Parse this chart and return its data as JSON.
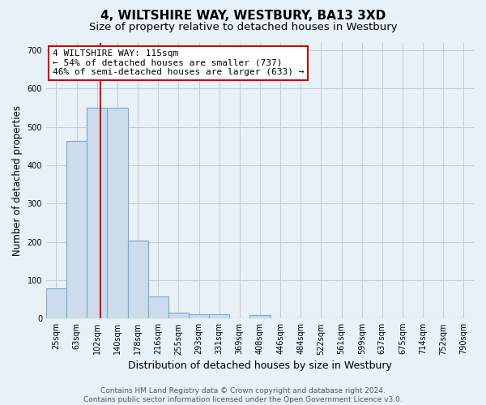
{
  "title": "4, WILTSHIRE WAY, WESTBURY, BA13 3XD",
  "subtitle": "Size of property relative to detached houses in Westbury",
  "xlabel": "Distribution of detached houses by size in Westbury",
  "ylabel": "Number of detached properties",
  "footer_line1": "Contains HM Land Registry data © Crown copyright and database right 2024.",
  "footer_line2": "Contains public sector information licensed under the Open Government Licence v3.0.",
  "bin_labels": [
    "25sqm",
    "63sqm",
    "102sqm",
    "140sqm",
    "178sqm",
    "216sqm",
    "255sqm",
    "293sqm",
    "331sqm",
    "369sqm",
    "408sqm",
    "446sqm",
    "484sqm",
    "522sqm",
    "561sqm",
    "599sqm",
    "637sqm",
    "675sqm",
    "714sqm",
    "752sqm",
    "790sqm"
  ],
  "bar_values": [
    78,
    463,
    550,
    550,
    203,
    57,
    15,
    10,
    10,
    0,
    8,
    0,
    0,
    0,
    0,
    0,
    0,
    0,
    0,
    0,
    0
  ],
  "bar_color": "#ccdcec",
  "bar_edge_color": "#7aaac8",
  "bar_edge_width": 0.8,
  "grid_color": "#c0ccd8",
  "background_color": "#e8f0f8",
  "red_line_x": 2.15,
  "red_line_color": "#cc0000",
  "annotation_line1": "4 WILTSHIRE WAY: 115sqm",
  "annotation_line2": "← 54% of detached houses are smaller (737)",
  "annotation_line3": "46% of semi-detached houses are larger (633) →",
  "annotation_box_facecolor": "#ffffff",
  "annotation_box_edgecolor": "#cc0000",
  "ylim": [
    0,
    720
  ],
  "yticks": [
    0,
    100,
    200,
    300,
    400,
    500,
    600,
    700
  ],
  "title_fontsize": 11,
  "subtitle_fontsize": 9.5,
  "xlabel_fontsize": 9,
  "ylabel_fontsize": 8.5,
  "tick_fontsize": 7,
  "annotation_fontsize": 8,
  "footer_fontsize": 6.5
}
